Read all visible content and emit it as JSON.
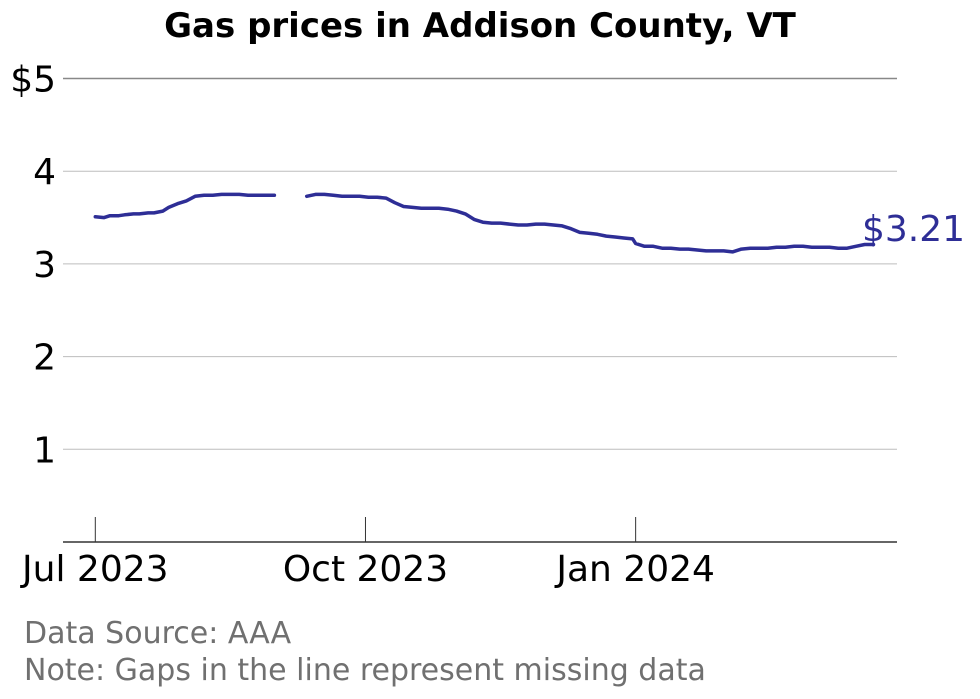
{
  "chart_data": {
    "type": "line",
    "title": "Gas prices in Addison County, VT",
    "xlabel": "",
    "ylabel": "",
    "x_ticks": [
      {
        "date": "2023-07-01",
        "label": "Jul 2023"
      },
      {
        "date": "2023-10-01",
        "label": "Oct 2023"
      },
      {
        "date": "2024-01-01",
        "label": "Jan 2024"
      }
    ],
    "y_ticks": [
      {
        "value": 1,
        "label": "1"
      },
      {
        "value": 2,
        "label": "2"
      },
      {
        "value": 3,
        "label": "3"
      },
      {
        "value": 4,
        "label": "4"
      },
      {
        "value": 5,
        "label": "$5"
      }
    ],
    "xlim": [
      "2023-06-20",
      "2024-03-30"
    ],
    "ylim": [
      0,
      5.2
    ],
    "grid": "horizontal",
    "line_color": "#2e2e96",
    "end_label": "$3.21",
    "series": [
      {
        "segments": [
          [
            [
              "2023-07-01",
              3.51
            ],
            [
              "2023-07-04",
              3.5
            ],
            [
              "2023-07-06",
              3.52
            ],
            [
              "2023-07-09",
              3.52
            ],
            [
              "2023-07-11",
              3.53
            ],
            [
              "2023-07-14",
              3.54
            ],
            [
              "2023-07-16",
              3.54
            ],
            [
              "2023-07-19",
              3.55
            ],
            [
              "2023-07-21",
              3.55
            ],
            [
              "2023-07-24",
              3.57
            ],
            [
              "2023-07-26",
              3.61
            ],
            [
              "2023-07-29",
              3.65
            ],
            [
              "2023-08-01",
              3.68
            ],
            [
              "2023-08-04",
              3.73
            ],
            [
              "2023-08-07",
              3.74
            ],
            [
              "2023-08-10",
              3.74
            ],
            [
              "2023-08-13",
              3.75
            ],
            [
              "2023-08-16",
              3.75
            ],
            [
              "2023-08-19",
              3.75
            ],
            [
              "2023-08-22",
              3.74
            ],
            [
              "2023-08-25",
              3.74
            ],
            [
              "2023-08-28",
              3.74
            ],
            [
              "2023-08-31",
              3.74
            ]
          ],
          [
            [
              "2023-09-11",
              3.73
            ],
            [
              "2023-09-14",
              3.75
            ],
            [
              "2023-09-17",
              3.75
            ],
            [
              "2023-09-20",
              3.74
            ],
            [
              "2023-09-23",
              3.73
            ],
            [
              "2023-09-26",
              3.73
            ],
            [
              "2023-09-29",
              3.73
            ],
            [
              "2023-10-02",
              3.72
            ],
            [
              "2023-10-05",
              3.72
            ],
            [
              "2023-10-08",
              3.71
            ],
            [
              "2023-10-11",
              3.66
            ],
            [
              "2023-10-14",
              3.62
            ],
            [
              "2023-10-17",
              3.61
            ],
            [
              "2023-10-20",
              3.6
            ],
            [
              "2023-10-23",
              3.6
            ],
            [
              "2023-10-26",
              3.6
            ],
            [
              "2023-10-29",
              3.59
            ],
            [
              "2023-11-01",
              3.57
            ],
            [
              "2023-11-04",
              3.54
            ],
            [
              "2023-11-07",
              3.48
            ],
            [
              "2023-11-10",
              3.45
            ],
            [
              "2023-11-13",
              3.44
            ],
            [
              "2023-11-16",
              3.44
            ],
            [
              "2023-11-19",
              3.43
            ],
            [
              "2023-11-22",
              3.42
            ],
            [
              "2023-11-25",
              3.42
            ],
            [
              "2023-11-28",
              3.43
            ],
            [
              "2023-12-01",
              3.43
            ],
            [
              "2023-12-04",
              3.42
            ],
            [
              "2023-12-07",
              3.41
            ],
            [
              "2023-12-10",
              3.38
            ],
            [
              "2023-12-13",
              3.34
            ],
            [
              "2023-12-16",
              3.33
            ],
            [
              "2023-12-19",
              3.32
            ],
            [
              "2023-12-22",
              3.3
            ],
            [
              "2023-12-25",
              3.29
            ],
            [
              "2023-12-28",
              3.28
            ],
            [
              "2023-12-31",
              3.27
            ],
            [
              "2024-01-01",
              3.22
            ],
            [
              "2024-01-04",
              3.19
            ],
            [
              "2024-01-07",
              3.19
            ],
            [
              "2024-01-10",
              3.17
            ],
            [
              "2024-01-13",
              3.17
            ],
            [
              "2024-01-16",
              3.16
            ],
            [
              "2024-01-19",
              3.16
            ],
            [
              "2024-01-22",
              3.15
            ],
            [
              "2024-01-25",
              3.14
            ],
            [
              "2024-01-28",
              3.14
            ],
            [
              "2024-01-31",
              3.14
            ],
            [
              "2024-02-03",
              3.13
            ],
            [
              "2024-02-06",
              3.16
            ],
            [
              "2024-02-09",
              3.17
            ],
            [
              "2024-02-12",
              3.17
            ],
            [
              "2024-02-15",
              3.17
            ],
            [
              "2024-02-18",
              3.18
            ],
            [
              "2024-02-21",
              3.18
            ],
            [
              "2024-02-24",
              3.19
            ],
            [
              "2024-02-27",
              3.19
            ],
            [
              "2024-03-01",
              3.18
            ],
            [
              "2024-03-04",
              3.18
            ],
            [
              "2024-03-07",
              3.18
            ],
            [
              "2024-03-10",
              3.17
            ],
            [
              "2024-03-13",
              3.17
            ],
            [
              "2024-03-16",
              3.19
            ],
            [
              "2024-03-19",
              3.21
            ],
            [
              "2024-03-22",
              3.21
            ]
          ]
        ]
      }
    ]
  },
  "footer": {
    "source": "Data Source: AAA",
    "note": "Note: Gaps in the line represent missing data"
  }
}
